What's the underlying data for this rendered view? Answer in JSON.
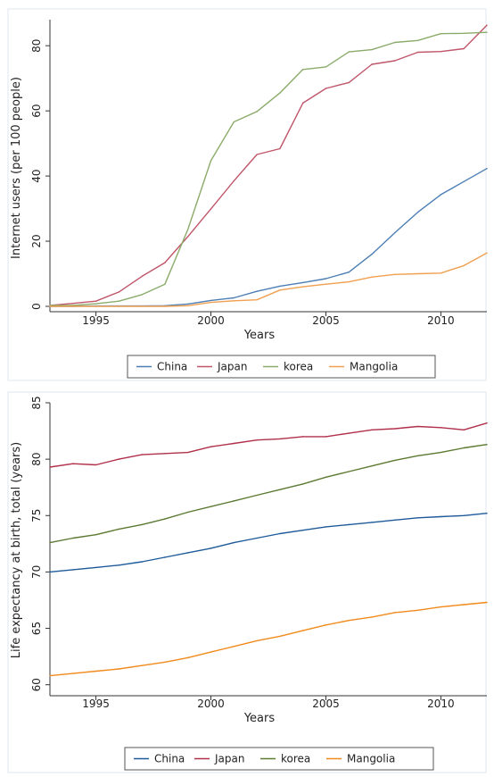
{
  "chart_data": [
    {
      "type": "line",
      "title": "",
      "xlabel": "Years",
      "ylabel": "Internet users (per 100 people)",
      "xlim": [
        1993,
        2012
      ],
      "ylim": [
        0,
        88
      ],
      "xticks": [
        1995,
        2000,
        2005,
        2010
      ],
      "yticks": [
        0,
        20,
        40,
        60,
        80
      ],
      "grid": false,
      "legend_position": "bottom",
      "x": [
        1993,
        1994,
        1995,
        1996,
        1997,
        1998,
        1999,
        2000,
        2001,
        2002,
        2003,
        2004,
        2005,
        2006,
        2007,
        2008,
        2009,
        2010,
        2011,
        2012
      ],
      "series": [
        {
          "name": "China",
          "color": "#4d7fb5",
          "values": [
            0,
            0,
            0.1,
            0.1,
            0.1,
            0.2,
            0.7,
            1.8,
            2.6,
            4.6,
            6.2,
            7.3,
            8.5,
            10.5,
            16,
            22.6,
            28.9,
            34.3,
            38.3,
            42.3
          ]
        },
        {
          "name": "Japan",
          "color": "#c0566a",
          "values": [
            0.3,
            0.9,
            1.6,
            4.4,
            9.2,
            13.4,
            21.4,
            29.9,
            38.5,
            46.6,
            48.4,
            62.4,
            66.9,
            68.7,
            74.3,
            75.4,
            78,
            78.2,
            79.1,
            86.3
          ]
        },
        {
          "name": "korea",
          "color": "#8bab6a",
          "values": [
            0.3,
            0.3,
            0.8,
            1.6,
            3.6,
            6.8,
            23.6,
            44.7,
            56.6,
            59.8,
            65.5,
            72.7,
            73.5,
            78.1,
            78.8,
            81,
            81.6,
            83.7,
            83.8,
            84.1
          ]
        },
        {
          "name": "Mangolia",
          "color": "#f0a050",
          "values": [
            0,
            0,
            0,
            0,
            0,
            0,
            0.2,
            1.2,
            1.7,
            2,
            5,
            6,
            6.8,
            7.5,
            9,
            9.8,
            10,
            10.2,
            12.5,
            16.4
          ]
        }
      ]
    },
    {
      "type": "line",
      "title": "",
      "xlabel": "Years",
      "ylabel": "Life expectancy at birth, total (years)",
      "xlim": [
        1993,
        2012
      ],
      "ylim": [
        59.5,
        85
      ],
      "xticks": [
        1995,
        2000,
        2005,
        2010
      ],
      "yticks": [
        60,
        65,
        70,
        75,
        80,
        85
      ],
      "grid": false,
      "legend_position": "bottom",
      "x": [
        1993,
        1994,
        1995,
        1996,
        1997,
        1998,
        1999,
        2000,
        2001,
        2002,
        2003,
        2004,
        2005,
        2006,
        2007,
        2008,
        2009,
        2010,
        2011,
        2012
      ],
      "series": [
        {
          "name": "China",
          "color": "#1f5b9a",
          "values": [
            70,
            70.2,
            70.4,
            70.6,
            70.9,
            71.3,
            71.7,
            72.1,
            72.6,
            73,
            73.4,
            73.7,
            74,
            74.2,
            74.4,
            74.6,
            74.8,
            74.9,
            75,
            75.2
          ]
        },
        {
          "name": "Japan",
          "color": "#b0304a",
          "values": [
            79.3,
            79.6,
            79.5,
            80,
            80.4,
            80.5,
            80.6,
            81.1,
            81.4,
            81.7,
            81.8,
            82,
            82,
            82.3,
            82.6,
            82.7,
            82.9,
            82.8,
            82.6,
            83.2
          ]
        },
        {
          "name": "korea",
          "color": "#5c7a32",
          "values": [
            72.6,
            73,
            73.3,
            73.8,
            74.2,
            74.7,
            75.3,
            75.8,
            76.3,
            76.8,
            77.3,
            77.8,
            78.4,
            78.9,
            79.4,
            79.9,
            80.3,
            80.6,
            81,
            81.3
          ]
        },
        {
          "name": "Mangolia",
          "color": "#f08a1c",
          "values": [
            60.8,
            61,
            61.2,
            61.4,
            61.7,
            62,
            62.4,
            62.9,
            63.4,
            63.9,
            64.3,
            64.8,
            65.3,
            65.7,
            66,
            66.4,
            66.6,
            66.9,
            67.1,
            67.3
          ]
        }
      ]
    }
  ]
}
